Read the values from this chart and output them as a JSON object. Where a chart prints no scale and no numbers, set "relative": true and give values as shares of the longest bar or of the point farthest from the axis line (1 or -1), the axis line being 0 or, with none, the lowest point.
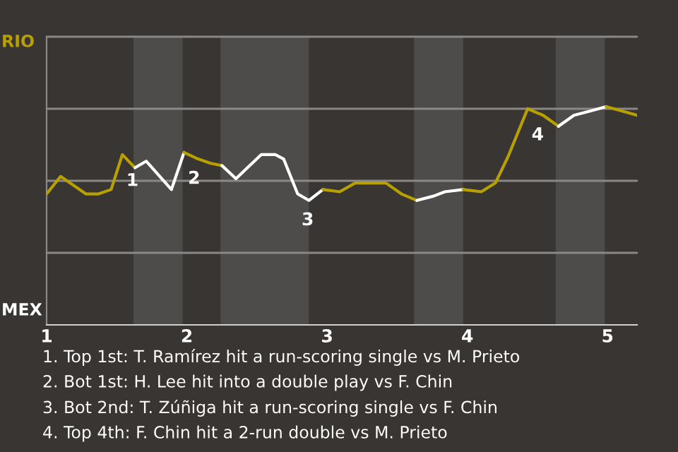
{
  "chart_data": {
    "type": "line",
    "relative": true,
    "xlim": [
      1,
      5.21
    ],
    "xticks": [
      1,
      2,
      3,
      4,
      5
    ],
    "legend": false,
    "ref_lines": [
      {
        "axis": "y",
        "value": 0.33,
        "color": "#8a8886"
      },
      {
        "axis": "y",
        "value": 0.66,
        "color": "#8a8886"
      },
      {
        "axis": "y",
        "value": 0.99,
        "color": "#8a8886"
      },
      {
        "axis": "y",
        "value": 1.32,
        "color": "#8a8886"
      }
    ],
    "series": [
      {
        "color": "#b8a000",
        "x": [
          1.0,
          1.1,
          1.28,
          1.37,
          1.46,
          1.54,
          1.63
        ],
        "values": [
          0.6,
          0.68,
          0.6,
          0.6,
          0.62,
          0.78,
          0.72
        ]
      },
      {
        "color": "#ffffff",
        "x": [
          1.63,
          1.71,
          1.89,
          1.98
        ],
        "values": [
          0.72,
          0.75,
          0.62,
          0.79
        ]
      },
      {
        "color": "#b8a000",
        "x": [
          1.98,
          2.08,
          2.17,
          2.25
        ],
        "values": [
          0.79,
          0.76,
          0.74,
          0.73
        ]
      },
      {
        "color": "#ffffff",
        "x": [
          2.25,
          2.35,
          2.53,
          2.63,
          2.69,
          2.79,
          2.87,
          2.97
        ],
        "values": [
          0.73,
          0.67,
          0.78,
          0.78,
          0.76,
          0.6,
          0.57,
          0.62
        ]
      },
      {
        "color": "#b8a000",
        "x": [
          2.97,
          3.09,
          3.2,
          3.42,
          3.53,
          3.64
        ],
        "values": [
          0.62,
          0.61,
          0.65,
          0.65,
          0.6,
          0.57
        ]
      },
      {
        "color": "#ffffff",
        "x": [
          3.64,
          3.76,
          3.84,
          3.97
        ],
        "values": [
          0.57,
          0.59,
          0.61,
          0.62
        ]
      },
      {
        "color": "#b8a000",
        "x": [
          3.97,
          4.1,
          4.2,
          4.29,
          4.43,
          4.54,
          4.65
        ],
        "values": [
          0.62,
          0.61,
          0.65,
          0.77,
          0.99,
          0.96,
          0.91
        ]
      },
      {
        "color": "#ffffff",
        "x": [
          4.65,
          4.76,
          4.88,
          4.99
        ],
        "values": [
          0.91,
          0.96,
          0.98,
          1
        ]
      },
      {
        "color": "#b8a000",
        "x": [
          4.99,
          5.1,
          5.21
        ],
        "values": [
          1,
          0.98,
          0.96
        ]
      }
    ],
    "bands": [
      {
        "axis": "x",
        "from": 1.62,
        "to": 1.97,
        "color": "#4e4c4a"
      },
      {
        "axis": "x",
        "from": 2.24,
        "to": 2.87,
        "color": "#4e4c4a"
      },
      {
        "axis": "x",
        "from": 3.62,
        "to": 3.97,
        "color": "#4e4c4a"
      },
      {
        "axis": "x",
        "from": 4.63,
        "to": 4.98,
        "color": "#4e4c4a"
      }
    ],
    "annotations": [
      "RIO",
      "MEX",
      {
        "text": "1",
        "x": 1.54,
        "y": 0.78
      },
      {
        "text": "2",
        "x": 1.98,
        "y": 0.79
      },
      {
        "text": "3",
        "x": 2.79,
        "y": 0.6
      },
      {
        "text": "4",
        "x": 4.43,
        "y": 0.99
      },
      "1. Top 1st: T. Ramírez hit a run-scoring single vs M. Prieto",
      "2. Bot 1st: H. Lee hit into a double play vs F. Chin",
      "3. Bot 2nd: T. Zúñiga hit a run-scoring single vs F. Chin",
      "4. Top 4th: F. Chin hit a 2-run double vs M. Prieto"
    ]
  }
}
